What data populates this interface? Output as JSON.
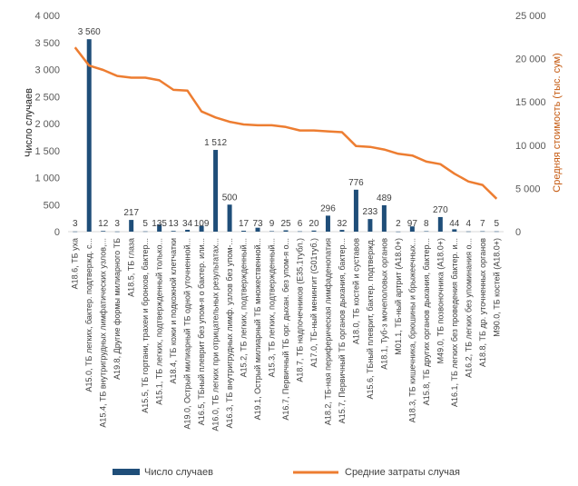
{
  "chart_data": {
    "type": "bar",
    "categories": [
      "A18.6, ТБ уха",
      "A15.0, ТБ легких, бактер. подтвержд. с...",
      "A15.4, ТБ внутригрудных лимфатических узлов,...",
      "A19.8, Другие формы милиарного ТБ",
      "A18.5, ТБ глаза",
      "A15.5, ТБ гортани, трахеи и бронхов, бактер...",
      "A15.1, ТБ легких, подтвержденный только...",
      "A18.4, ТБ кожи и подкожной клетчатки",
      "A19.0, Острый милиарный ТБ одной уточненной...",
      "A16.5, ТБный плеврит без упом-я о бактер. или...",
      "A16.0, ТБ легких при отрицательных результатах...",
      "A16.3, ТБ внутригрудных лимф. узлов без упом-...",
      "A15.2, ТБ легких, подтвержденный...",
      "A19.1, Острый милиарный ТБ множественной...",
      "A15.3, ТБ легких, подтвержденный...",
      "A16.7, Первичный ТБ орг. дыхан. без упом-я о...",
      "A18.7, ТБ надпочечников (E35.1тубл.)",
      "A17.0, ТБ-ный менингит (G01туб.)",
      "A18.2, ТБ-ная периферическая лимфаденопатия",
      "A15.7, Первичный ТБ органов дыхания, бактер...",
      "A18.0, ТБ костей и суставов",
      "A15.6, ТБный плеврит, бактер. подтвержд.",
      "A18.1, Туб-з мочеполовых органов",
      "M01.1, ТБ-ный артрит (A18.0+)",
      "A18.3, ТБ кишечника, брюшины и брыжеечных...",
      "A15.8, ТБ других органов дыхания, бактер...",
      "M49.0, ТБ позвоночника (A18.0+)",
      "A16.1, ТБ легких без проведения бактер. и...",
      "A16.2, ТБ легких без упоминания о...",
      "A18.8, ТБ др. уточненных органов",
      "M90.0, ТБ костей (A18.0+)"
    ],
    "series": [
      {
        "name": "Число случаев",
        "color": "#1f4e79",
        "axis": "left",
        "values": [
          3,
          3560,
          12,
          3,
          217,
          5,
          135,
          13,
          34,
          109,
          1512,
          500,
          17,
          73,
          9,
          25,
          6,
          20,
          296,
          32,
          776,
          233,
          489,
          2,
          97,
          8,
          270,
          44,
          4,
          7,
          5
        ],
        "labels": [
          "3",
          "3 560",
          "12",
          "3",
          "217",
          "5",
          "135",
          "13",
          "34",
          "109",
          "1 512",
          "500",
          "17",
          "73",
          "9",
          "25",
          "6",
          "20",
          "296",
          "32",
          "776",
          "233",
          "489",
          "2",
          "97",
          "8",
          "270",
          "44",
          "4",
          "7",
          "5"
        ]
      },
      {
        "name": "Средние затраты  случая",
        "color": "#ed7d31",
        "axis": "right",
        "type": "line",
        "values": [
          21300,
          19200,
          18700,
          18000,
          17800,
          17800,
          17500,
          16400,
          16300,
          13900,
          13200,
          12700,
          12400,
          12300,
          12300,
          12100,
          11700,
          11700,
          11600,
          11500,
          9900,
          9800,
          9500,
          9000,
          8800,
          8100,
          7800,
          6700,
          5800,
          5400,
          3800
        ]
      }
    ],
    "ylabel": "Число случаев",
    "y2label": "Средняя  стоимость (тыс. сум)",
    "ylim": [
      0,
      4000
    ],
    "y2lim": [
      0,
      25000
    ],
    "yticks": [
      "0",
      "500",
      "1 000",
      "1 500",
      "2 000",
      "2 500",
      "3 000",
      "3 500",
      "4 000"
    ],
    "y2ticks": [
      "0",
      "5 000",
      "10 000",
      "15 000",
      "20 000",
      "25 000"
    ],
    "grid": false,
    "legend": "bottom"
  }
}
